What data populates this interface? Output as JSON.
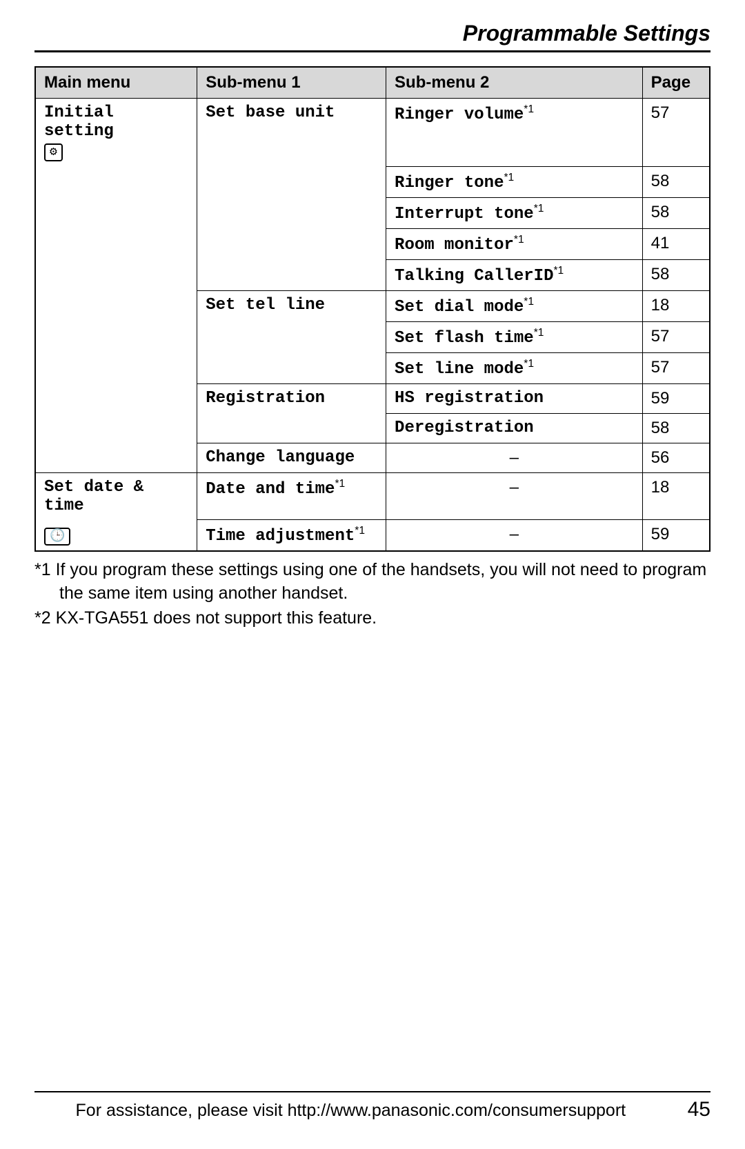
{
  "title": "Programmable Settings",
  "table": {
    "headers": {
      "main": "Main menu",
      "sub1": "Sub-menu 1",
      "sub2": "Sub-menu 2",
      "page": "Page"
    },
    "section1": {
      "main": "Initial setting",
      "icon": "settings-icon",
      "groups": [
        {
          "sub1": "Set base unit",
          "rows": [
            {
              "sub2": "Ringer volume",
              "sup": "*1",
              "page": "57"
            },
            {
              "sub2": "Ringer tone",
              "sup": "*1",
              "page": "58"
            },
            {
              "sub2": "Interrupt tone",
              "sup": "*1",
              "page": "58"
            },
            {
              "sub2": "Room monitor",
              "sup": "*1",
              "page": "41"
            },
            {
              "sub2": "Talking CallerID",
              "sup": "*1",
              "page": "58"
            }
          ]
        },
        {
          "sub1": "Set tel line",
          "rows": [
            {
              "sub2": "Set dial mode",
              "sup": "*1",
              "page": "18"
            },
            {
              "sub2": "Set flash time",
              "sup": "*1",
              "page": "57"
            },
            {
              "sub2": "Set line mode",
              "sup": "*1",
              "page": "57"
            }
          ]
        },
        {
          "sub1": "Registration",
          "rows": [
            {
              "sub2": "HS registration",
              "sup": "",
              "page": "59"
            },
            {
              "sub2": "Deregistration",
              "sup": "",
              "page": "58"
            }
          ]
        },
        {
          "sub1": "Change language",
          "rows": [
            {
              "sub2": "–",
              "sup": "",
              "page": "56"
            }
          ]
        }
      ]
    },
    "section2": {
      "main": "Set date & time",
      "icon": "clock-icon",
      "groups": [
        {
          "sub1": "Date and time",
          "sup1": "*1",
          "rows": [
            {
              "sub2": "–",
              "sup": "",
              "page": "18"
            }
          ]
        },
        {
          "sub1": "Time adjustment",
          "sup1": "*1",
          "rows": [
            {
              "sub2": "–",
              "sup": "",
              "page": "59"
            }
          ]
        }
      ]
    }
  },
  "footnotes": {
    "f1": "*1 If you program these settings using one of the handsets, you will not need to program the same item using another handset.",
    "f2": "*2 KX-TGA551 does not support this feature."
  },
  "footer": {
    "text": "For assistance, please visit http://www.panasonic.com/consumersupport",
    "page": "45"
  },
  "styling": {
    "header_bg": "#d8d8d8",
    "border_color": "#000000",
    "mono_font": "Courier New",
    "sans_font": "Arial",
    "title_fontsize_pt": 24,
    "cell_fontsize_pt": 18,
    "footnote_fontsize_pt": 19,
    "page_bg": "#ffffff"
  }
}
